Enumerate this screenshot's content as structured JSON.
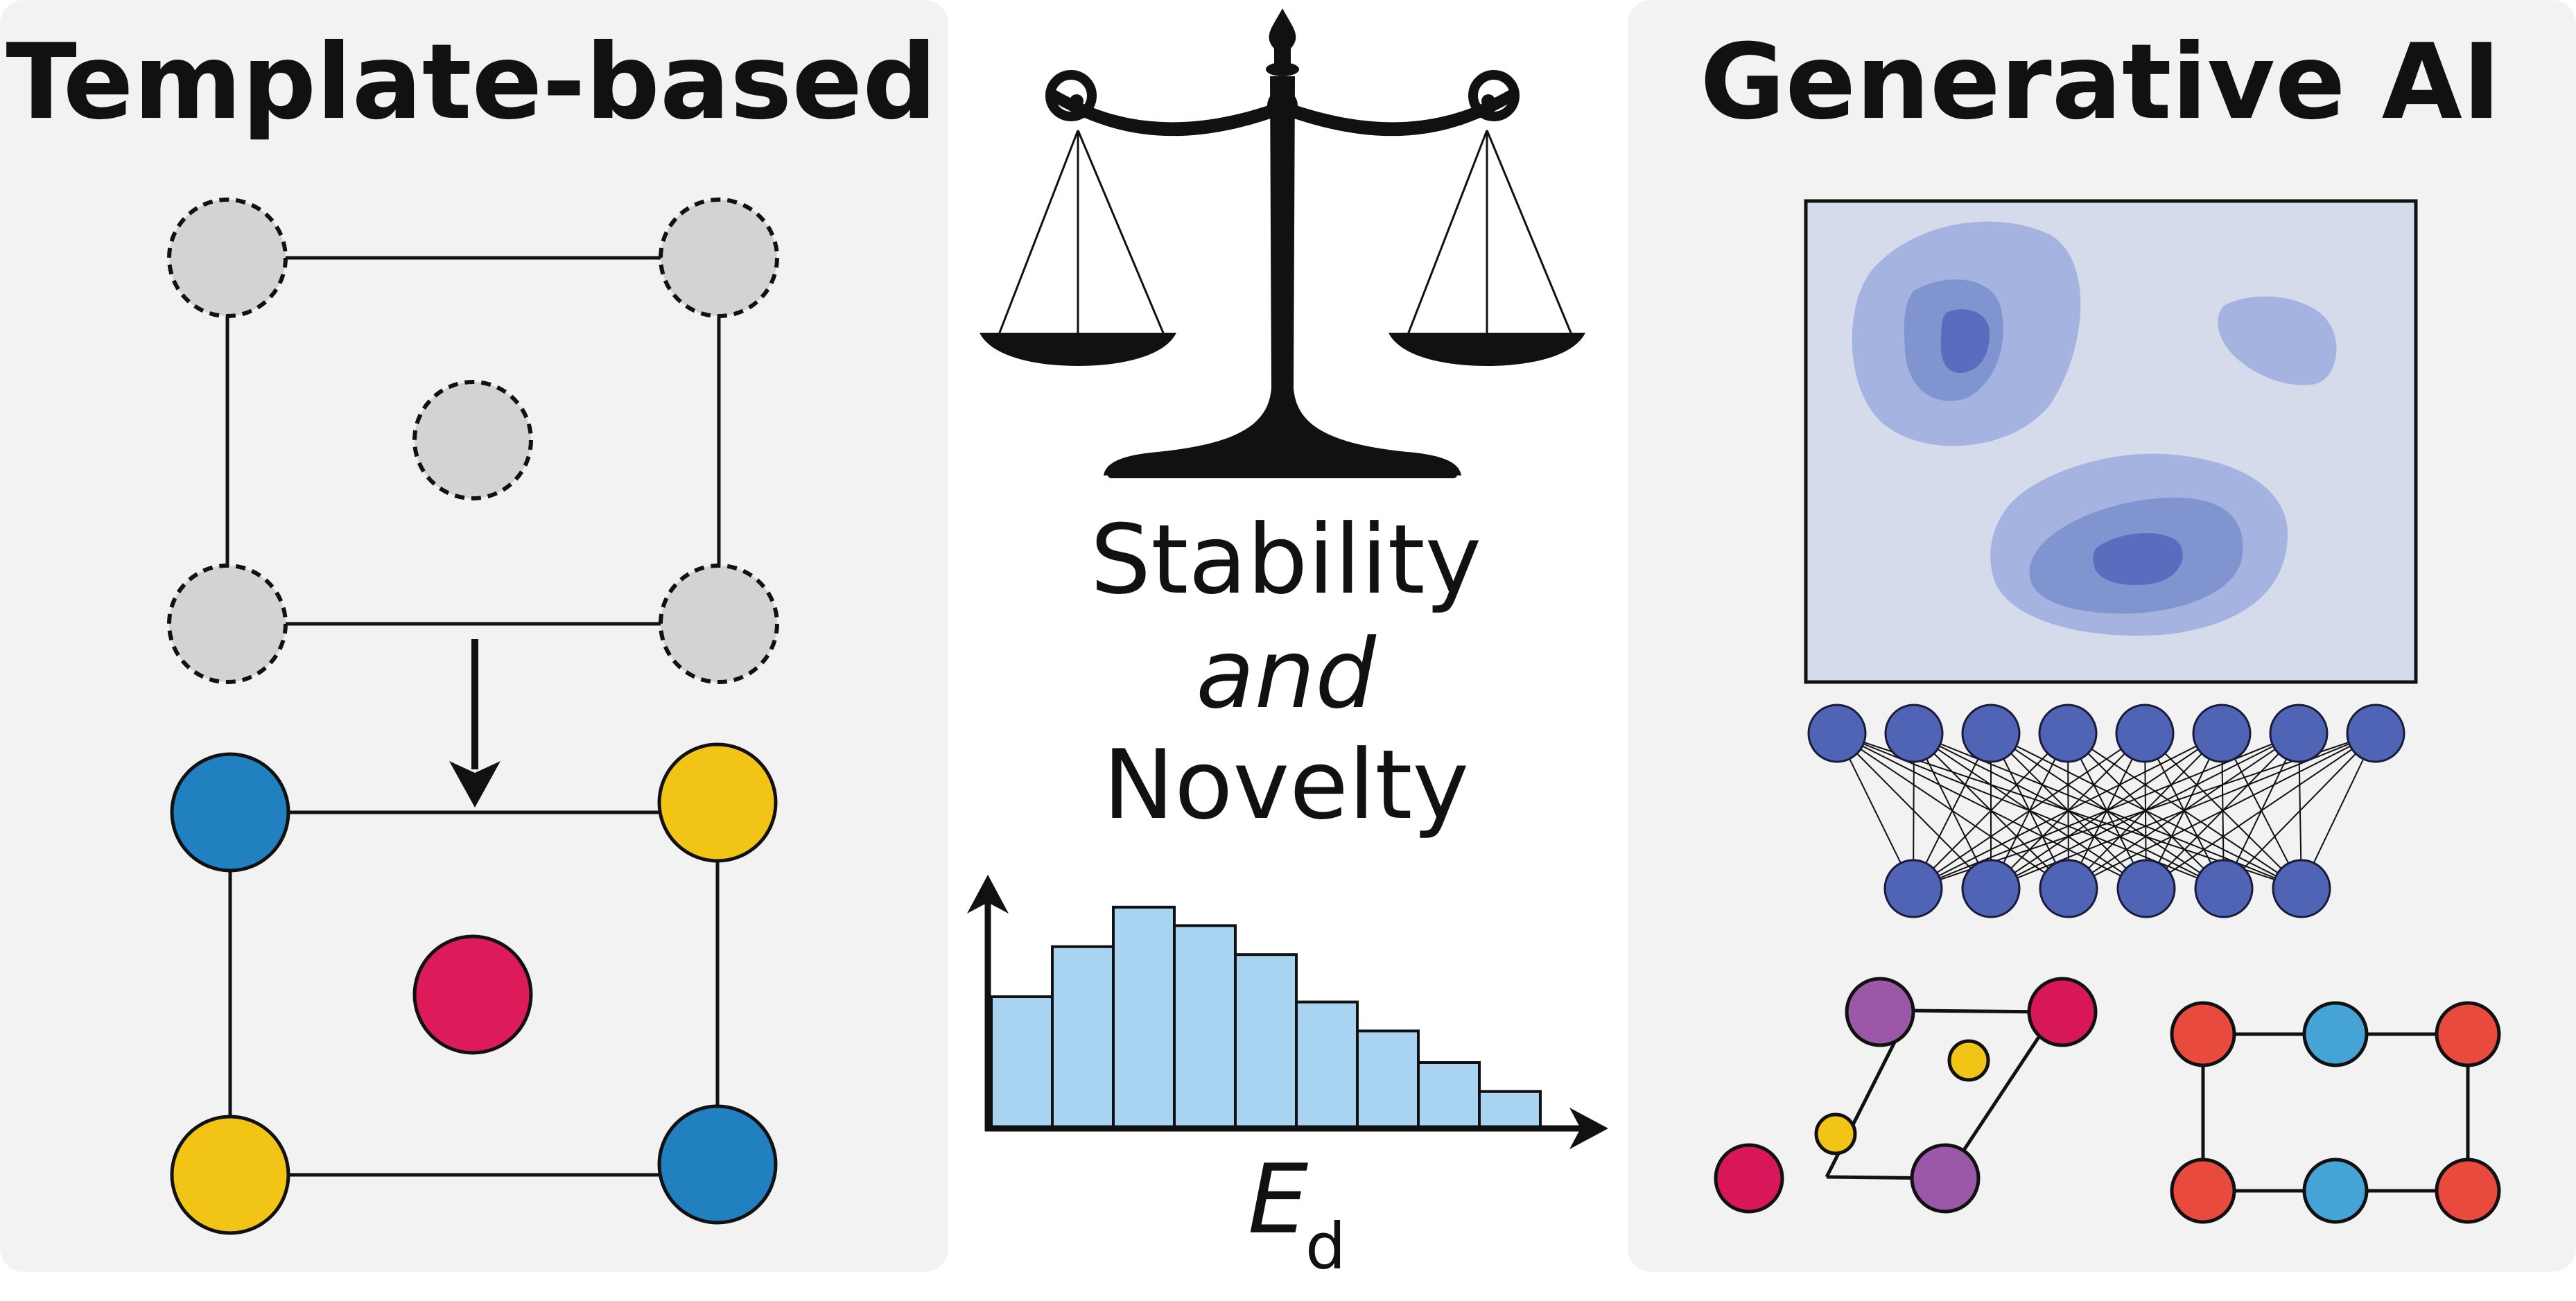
{
  "left_panel": {
    "title": "Template-based",
    "colors": {
      "panel_bg": "#f2f2f2",
      "template_site": "#d3d3d3",
      "blue": "#2080c0",
      "yellow": "#f2c416",
      "magenta": "#dd1a5a"
    }
  },
  "center": {
    "line1": "Stability",
    "line2": "and",
    "line3": "Novelty",
    "axis_label_main": "E",
    "axis_label_sub": "d",
    "histogram": {
      "bin_heights": [
        0.5,
        0.69,
        0.84,
        0.77,
        0.66,
        0.48,
        0.37,
        0.25,
        0.14
      ],
      "fill": "#a8d4f2"
    }
  },
  "right_panel": {
    "title": "Generative AI",
    "colors": {
      "panel_bg": "#f2f2f2",
      "latent_bg": "#d5dbeb",
      "level1": "#a4b3df",
      "level2": "#8094d0",
      "level3": "#5a6cbd",
      "node": "#5064b6",
      "purple": "#9b57a8",
      "crimson": "#d8175b",
      "yellow": "#f2c416",
      "red": "#e94a3e",
      "cyan": "#46a3d6"
    },
    "network": {
      "top_nodes": 8,
      "bottom_nodes": 6
    }
  }
}
